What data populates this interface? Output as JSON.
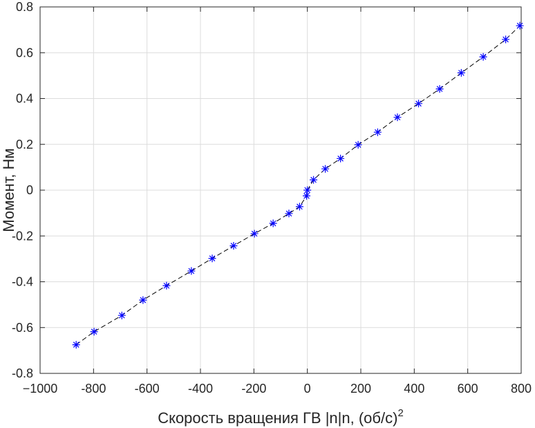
{
  "chart_data": {
    "type": "scatter",
    "xlabel": "Скорость вращения ГВ |n|n, (об/с)",
    "xlabel_superscript": "2",
    "ylabel": "Момент, Нм",
    "xlim": [
      -1000,
      800
    ],
    "ylim": [
      -0.8,
      0.8
    ],
    "xticks": [
      -1000,
      -800,
      -600,
      -400,
      -200,
      0,
      200,
      400,
      600,
      800
    ],
    "xtick_labels": [
      "−1000",
      "-800",
      "-600",
      "-400",
      "-200",
      "0",
      "200",
      "400",
      "600",
      "800"
    ],
    "yticks": [
      -0.8,
      -0.6,
      -0.4,
      -0.2,
      0,
      0.2,
      0.4,
      0.6,
      0.8
    ],
    "ytick_labels": [
      "-0.8",
      "-0.6",
      "-0.4",
      "-0.2",
      "0",
      "0.2",
      "0.4",
      "0.6",
      "0.8"
    ],
    "grid": true,
    "series": [
      {
        "marker": "asterisk",
        "line": "dashed",
        "marker_color": "#0000ff",
        "line_color": "#000000",
        "x": [
          -865,
          -798,
          -694,
          -615,
          -527,
          -434,
          -356,
          -276,
          -198,
          -128,
          -69,
          -29,
          -3,
          0,
          23,
          67,
          124,
          190,
          263,
          337,
          416,
          495,
          576,
          658,
          742,
          795
        ],
        "y": [
          -0.675,
          -0.618,
          -0.547,
          -0.48,
          -0.417,
          -0.353,
          -0.298,
          -0.243,
          -0.19,
          -0.145,
          -0.102,
          -0.072,
          -0.025,
          0.0,
          0.045,
          0.093,
          0.138,
          0.198,
          0.253,
          0.318,
          0.378,
          0.442,
          0.512,
          0.582,
          0.658,
          0.718
        ]
      }
    ]
  }
}
